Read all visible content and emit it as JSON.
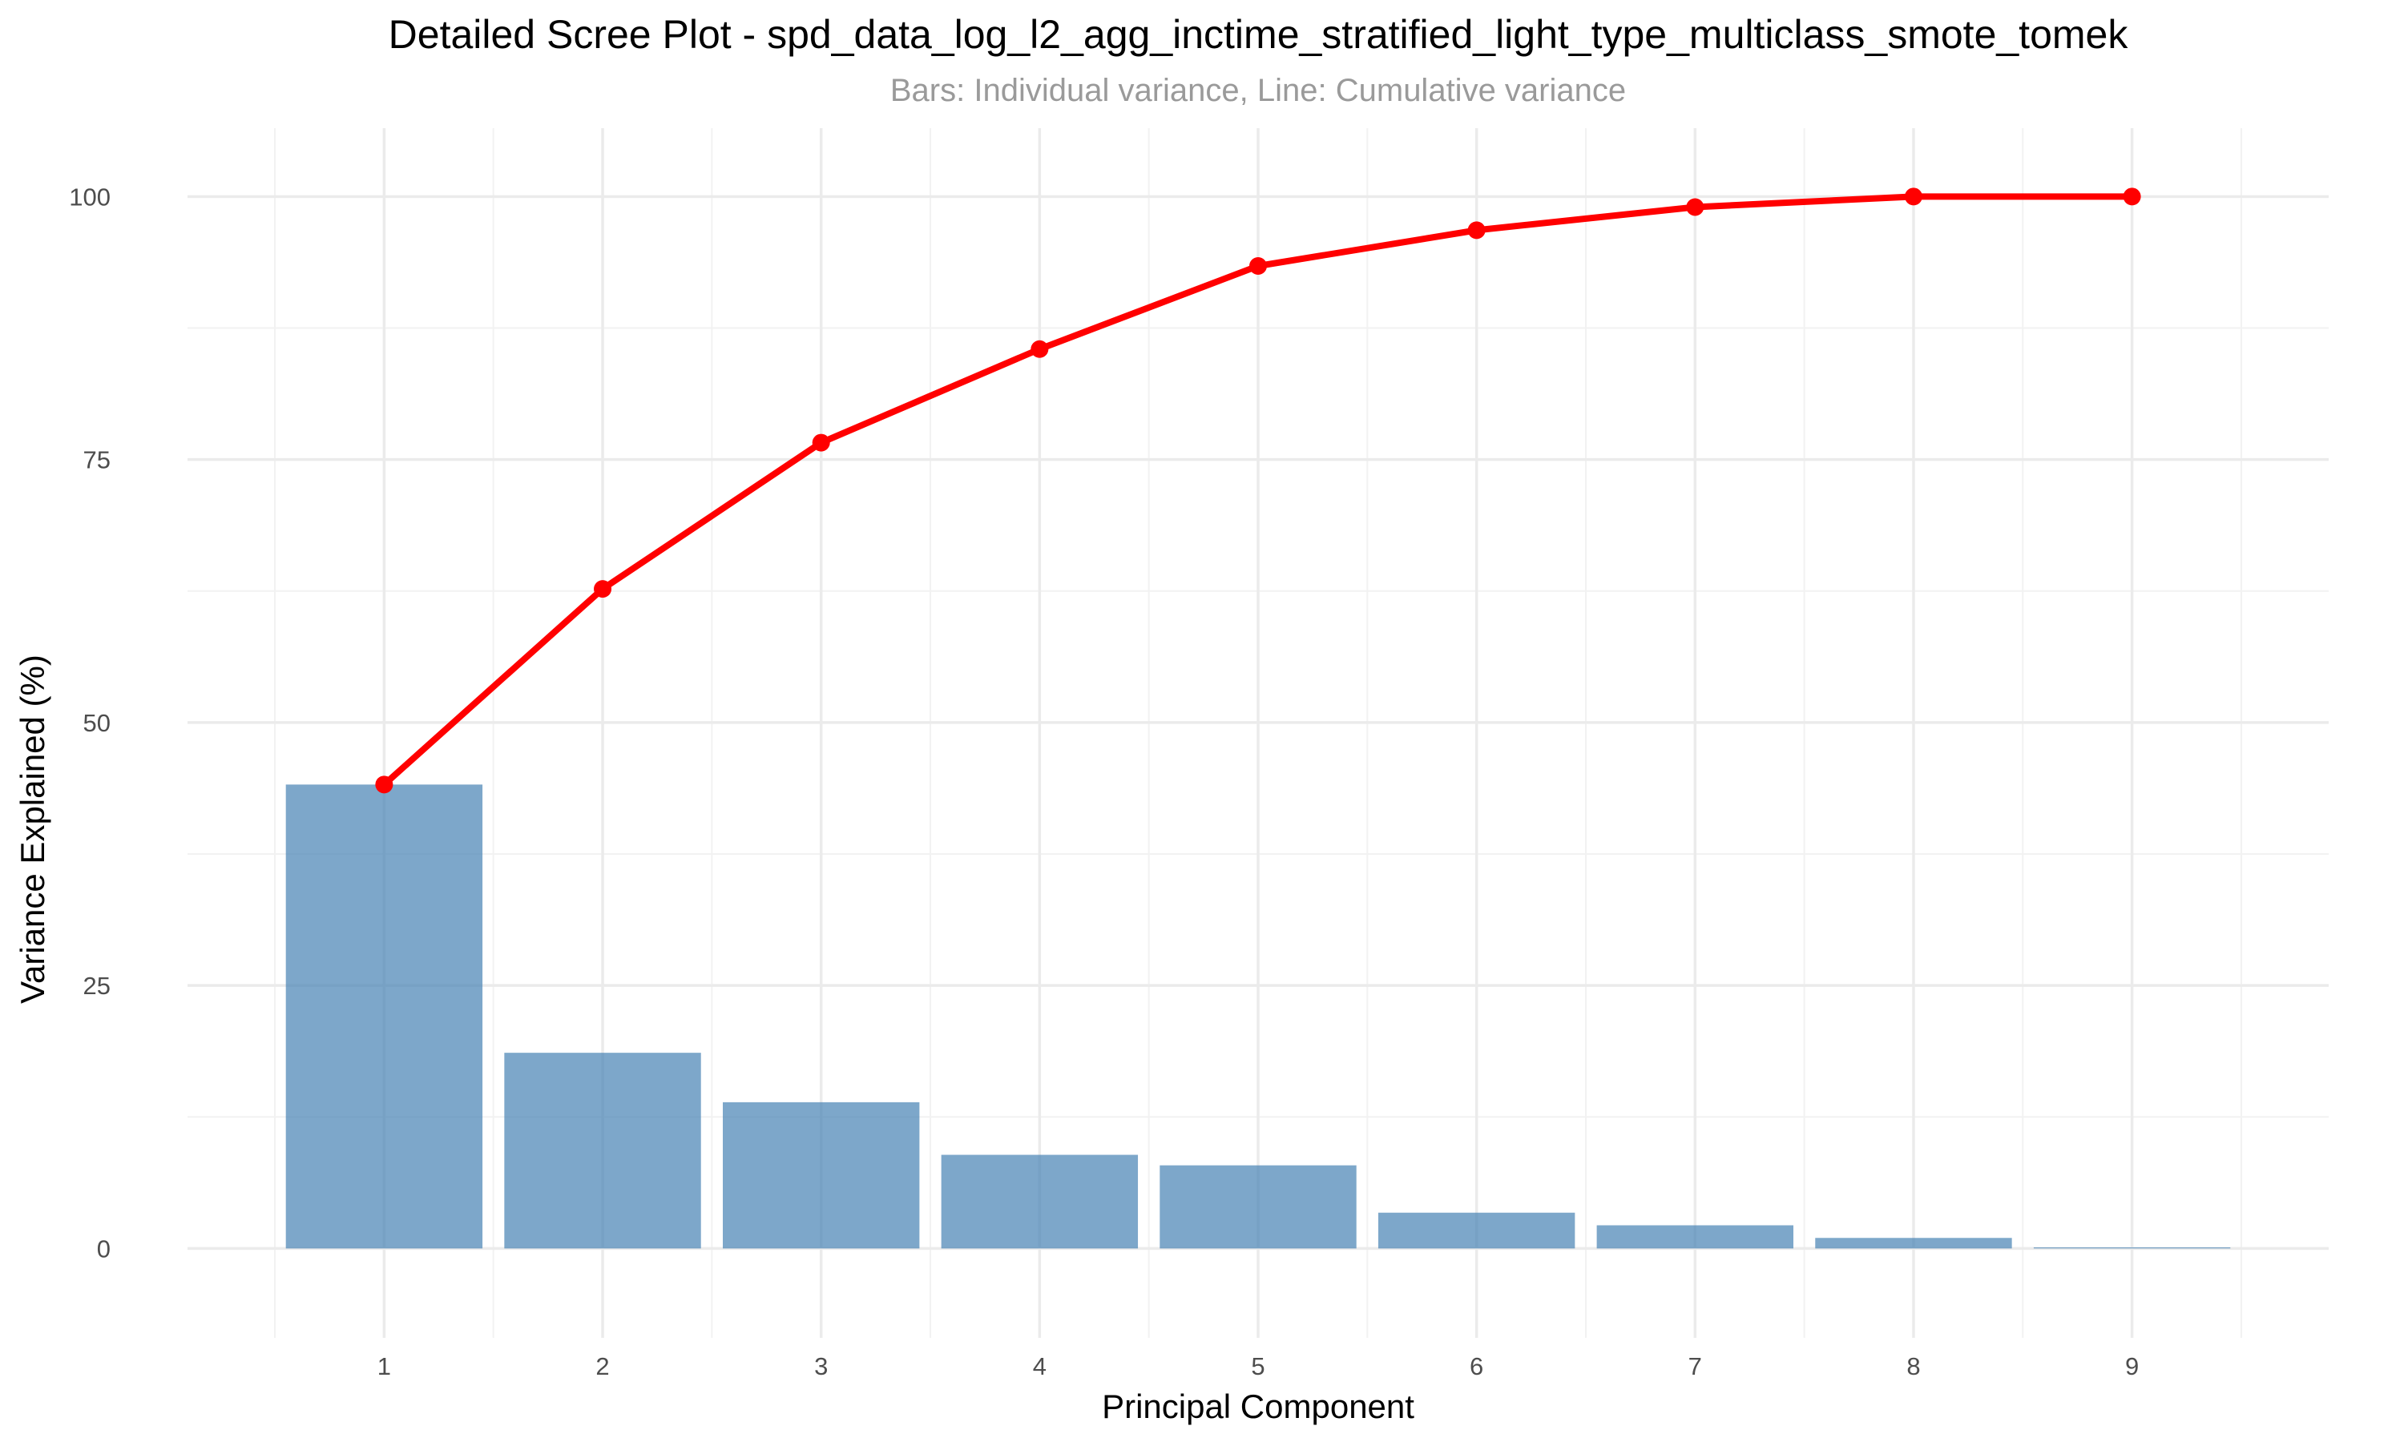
{
  "chart_data": {
    "type": "bar",
    "title": "Detailed Scree Plot - spd_data_log_l2_agg_inctime_stratified_light_type_multiclass_smote_tomek",
    "subtitle": "Bars: Individual variance, Line: Cumulative variance",
    "xlabel": "Principal Component",
    "ylabel": "Variance Explained (%)",
    "categories": [
      "1",
      "2",
      "3",
      "4",
      "5",
      "6",
      "7",
      "8",
      "9"
    ],
    "ylim": [
      -8.5,
      106.5
    ],
    "yticks": [
      0,
      25,
      50,
      75,
      100
    ],
    "ytick_labels": [
      "0",
      "25",
      "50",
      "75",
      "100"
    ],
    "grid": true,
    "legend": "none",
    "series": [
      {
        "kind": "bar",
        "values": [
          44.1,
          18.6,
          13.9,
          8.9,
          7.9,
          3.4,
          2.2,
          1.0,
          0.1
        ],
        "color": "#4682B4",
        "opacity": 0.7
      },
      {
        "kind": "line",
        "values": [
          44.1,
          62.7,
          76.6,
          85.5,
          93.4,
          96.8,
          99.0,
          100.0,
          100.0
        ],
        "color": "#FF0000"
      }
    ]
  }
}
